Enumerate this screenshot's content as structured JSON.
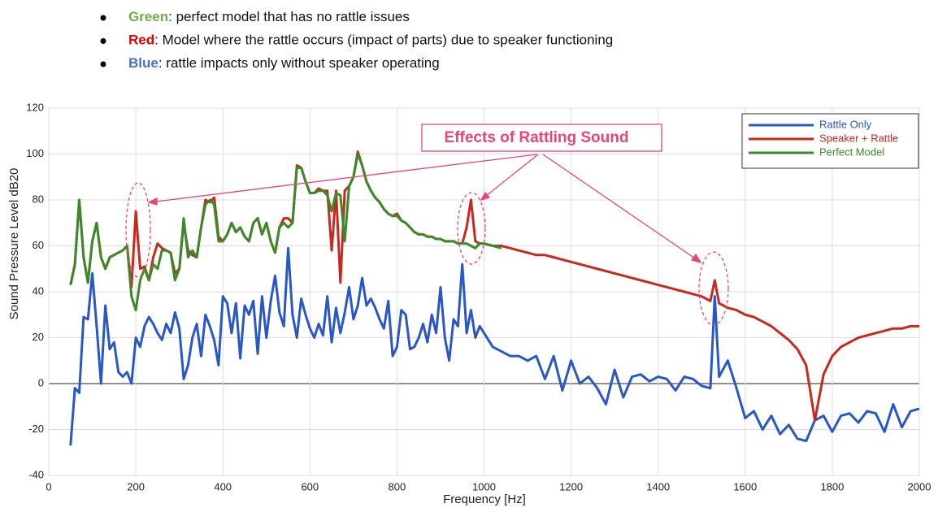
{
  "bullets": [
    {
      "label": "Green",
      "text": ": perfect model that has no rattle issues",
      "color": "#70ad47"
    },
    {
      "label": "Red",
      "text": ": Model where the rattle occurs (impact of parts) due to speaker functioning",
      "color": "#e00000"
    },
    {
      "label": "Blue",
      "text": ": rattle impacts only without speaker operating",
      "color": "#4472c4"
    }
  ],
  "chart_data": {
    "type": "line",
    "annotation": "Effects of Rattling Sound",
    "x_label": "Frequency [Hz]",
    "y_label": "Sound Pressure Level dB20",
    "xlim": [
      0,
      2000
    ],
    "ylim": [
      -40,
      120
    ],
    "xticks": [
      0,
      200,
      400,
      600,
      800,
      1000,
      1200,
      1400,
      1600,
      1800,
      2000
    ],
    "yticks": [
      -40,
      -20,
      0,
      20,
      40,
      60,
      80,
      100,
      120
    ],
    "grid": true,
    "legend": "upper right",
    "x": [
      50,
      60,
      70,
      80,
      90,
      100,
      110,
      120,
      130,
      140,
      150,
      160,
      170,
      180,
      190,
      200,
      210,
      220,
      230,
      240,
      250,
      260,
      270,
      280,
      290,
      300,
      310,
      320,
      330,
      340,
      350,
      360,
      370,
      380,
      390,
      400,
      410,
      420,
      430,
      440,
      450,
      460,
      470,
      480,
      490,
      500,
      510,
      520,
      530,
      540,
      550,
      560,
      570,
      580,
      590,
      600,
      610,
      620,
      630,
      640,
      650,
      660,
      670,
      680,
      690,
      700,
      710,
      720,
      730,
      740,
      750,
      760,
      770,
      780,
      790,
      800,
      810,
      820,
      830,
      840,
      850,
      860,
      870,
      880,
      890,
      900,
      910,
      920,
      930,
      940,
      950,
      960,
      970,
      980,
      990,
      1000,
      1020,
      1040,
      1060,
      1080,
      1100,
      1120,
      1140,
      1160,
      1180,
      1200,
      1220,
      1240,
      1260,
      1280,
      1300,
      1320,
      1340,
      1360,
      1380,
      1400,
      1420,
      1440,
      1460,
      1480,
      1500,
      1520,
      1530,
      1540,
      1560,
      1580,
      1600,
      1620,
      1640,
      1660,
      1680,
      1700,
      1720,
      1740,
      1760,
      1780,
      1800,
      1820,
      1840,
      1860,
      1880,
      1900,
      1920,
      1940,
      1960,
      1980,
      2000
    ],
    "series": [
      {
        "name": "Rattle Only",
        "color": "#2857c9",
        "values": [
          -27,
          -2,
          -4,
          29,
          28,
          48,
          25,
          0,
          34,
          15,
          18,
          5,
          3,
          5,
          0,
          20,
          16,
          25,
          29,
          26,
          22,
          19,
          26,
          22,
          31,
          24,
          2,
          8,
          20,
          26,
          12,
          30,
          25,
          19,
          8,
          38,
          35,
          22,
          35,
          11,
          34,
          30,
          36,
          13,
          38,
          20,
          36,
          47,
          31,
          25,
          59,
          30,
          20,
          37,
          30,
          24,
          20,
          26,
          21,
          38,
          18,
          33,
          22,
          31,
          42,
          28,
          34,
          46,
          34,
          37,
          33,
          28,
          24,
          36,
          12,
          16,
          32,
          30,
          15,
          16,
          20,
          26,
          18,
          30,
          22,
          42,
          20,
          10,
          28,
          25,
          52,
          22,
          32,
          20,
          25,
          22,
          16,
          14,
          12,
          12,
          10,
          12,
          2,
          12,
          -3,
          10,
          0,
          3,
          -2,
          -9,
          6,
          -6,
          3,
          4,
          1,
          3,
          2,
          -3,
          3,
          2,
          -1,
          -2,
          38,
          3,
          10,
          -2,
          -15,
          -12,
          -20,
          -14,
          -22,
          -18,
          -24,
          -25,
          -16,
          -14,
          -21,
          -14,
          -13,
          -17,
          -12,
          -13,
          -21,
          -9,
          -19,
          -12,
          -11
        ]
      },
      {
        "name": "Speaker + Rattle",
        "color": "#c8281e",
        "values": [
          43,
          52,
          80,
          55,
          44,
          62,
          70,
          55,
          50,
          55,
          56,
          57,
          58,
          60,
          42,
          75,
          50,
          51,
          45,
          55,
          61,
          59,
          58,
          57,
          48,
          50,
          70,
          58,
          56,
          55,
          68,
          80,
          79,
          81,
          64,
          62,
          65,
          70,
          66,
          68,
          64,
          62,
          70,
          72,
          65,
          70,
          62,
          57,
          68,
          72,
          72,
          70,
          95,
          94,
          88,
          83,
          83,
          85,
          84,
          84,
          58,
          84,
          44,
          84,
          86,
          90,
          101,
          95,
          88,
          84,
          81,
          79,
          76,
          74,
          73,
          74,
          71,
          70,
          68,
          66,
          65,
          65,
          64,
          64,
          63,
          63,
          62,
          62,
          62,
          61,
          61,
          68,
          80,
          62,
          61,
          61,
          60,
          60,
          59,
          58,
          57,
          56,
          56,
          55,
          54,
          53,
          52,
          51,
          50,
          49,
          48,
          47,
          46,
          45,
          44,
          43,
          42,
          41,
          40,
          39,
          38,
          36,
          45,
          35,
          33,
          32,
          30,
          29,
          27,
          25,
          22,
          19,
          15,
          8,
          -16,
          4,
          12,
          16,
          18,
          20,
          21,
          22,
          23,
          24,
          24,
          25,
          25
        ]
      },
      {
        "name": "Perfect Model",
        "color": "#3a8a2a",
        "values": [
          43,
          52,
          80,
          55,
          44,
          62,
          70,
          55,
          50,
          55,
          56,
          57,
          58,
          60,
          38,
          32,
          45,
          50,
          45,
          52,
          50,
          58,
          58,
          57,
          45,
          50,
          72,
          55,
          58,
          55,
          68,
          78,
          80,
          78,
          62,
          62,
          65,
          70,
          66,
          68,
          64,
          62,
          70,
          72,
          65,
          70,
          62,
          57,
          68,
          70,
          68,
          70,
          94,
          94,
          88,
          83,
          83,
          84,
          84,
          82,
          75,
          83,
          82,
          62,
          86,
          90,
          100,
          95,
          88,
          84,
          81,
          79,
          76,
          74,
          73,
          73,
          71,
          70,
          68,
          66,
          65,
          65,
          64,
          64,
          63,
          63,
          62,
          62,
          62,
          61,
          61,
          61,
          60,
          59,
          61,
          61,
          60,
          59,
          null,
          null,
          null,
          null,
          null,
          null,
          null,
          null,
          null,
          null,
          null,
          null,
          null,
          null,
          null,
          null,
          null,
          null,
          null,
          null,
          null,
          null,
          null,
          null,
          null,
          null,
          null,
          null,
          null,
          null,
          null,
          null,
          null,
          null,
          null,
          null,
          null,
          null,
          null,
          null,
          null,
          null,
          null,
          null,
          null,
          null,
          null,
          null,
          null
        ]
      }
    ]
  }
}
